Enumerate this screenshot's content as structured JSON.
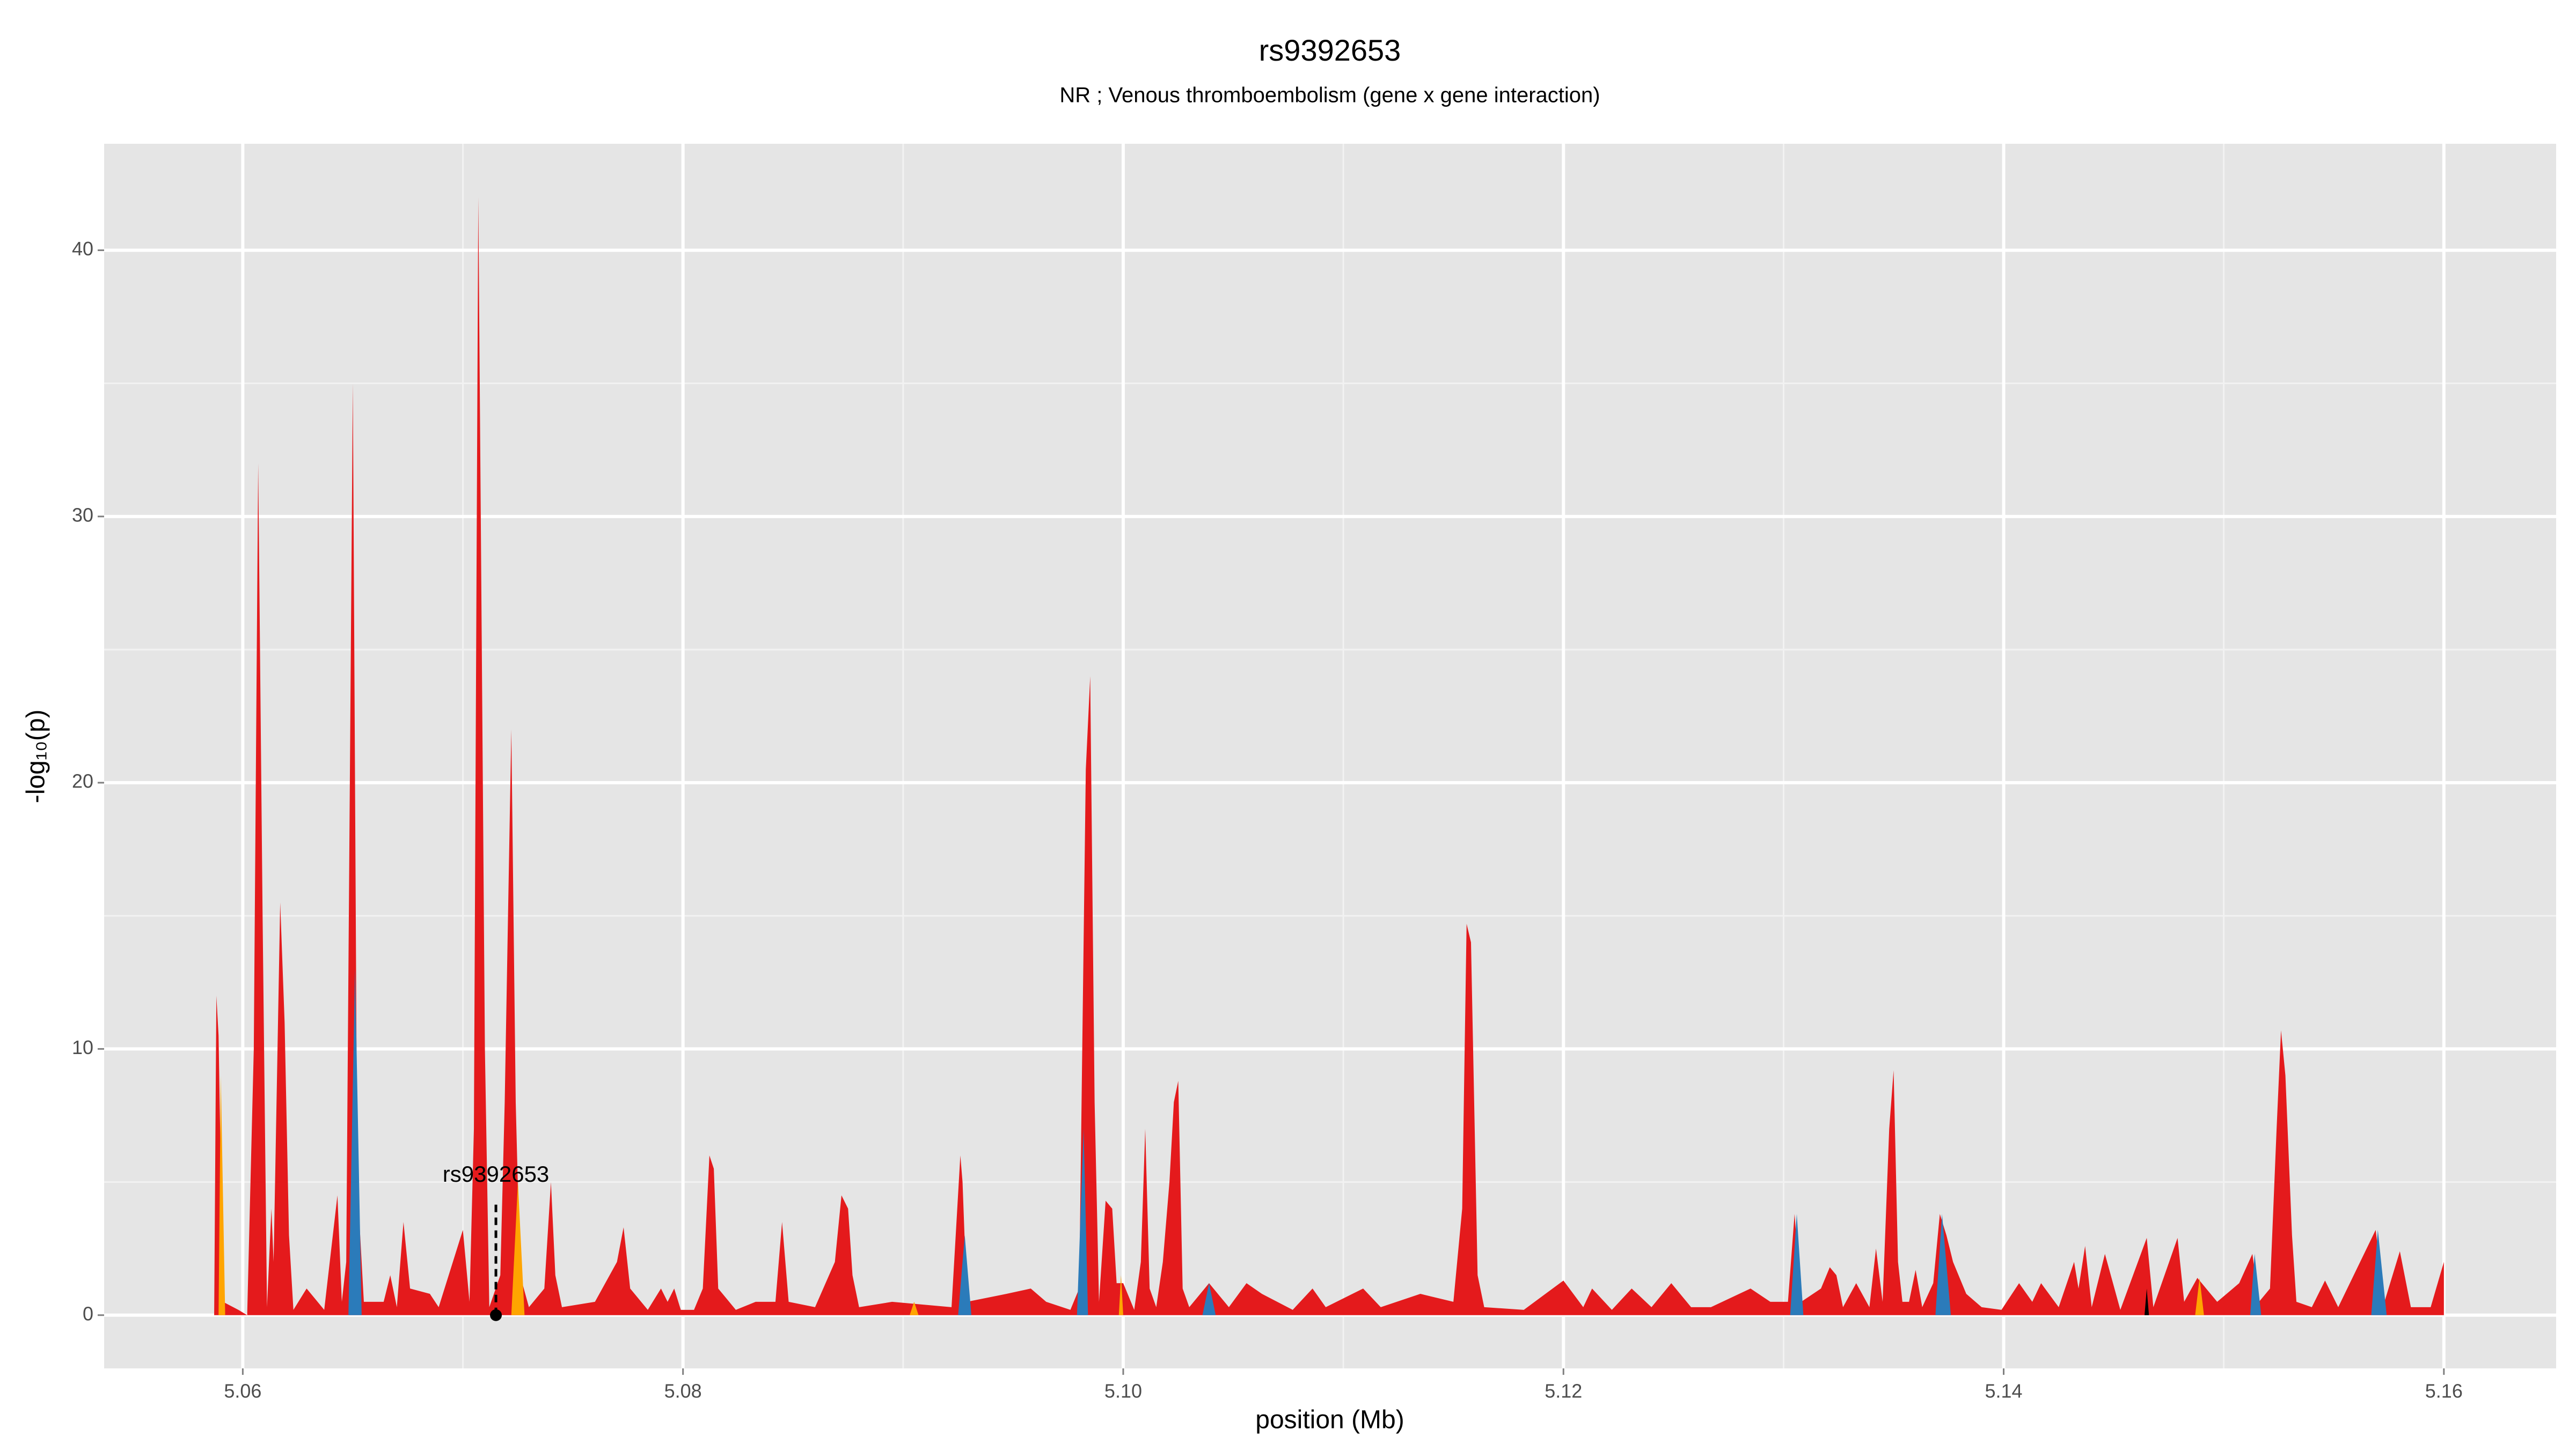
{
  "chart_data": {
    "type": "area",
    "title": "rs9392653",
    "subtitle": "NR ; Venous thromboembolism (gene x gene interaction)",
    "xlabel": "position (Mb)",
    "ylabel": "-log₁₀(p)",
    "xlim": [
      5.0537,
      5.1651
    ],
    "ylim": [
      -2,
      44
    ],
    "xticks": [
      5.06,
      5.08,
      {
        "value": 5.1,
        "label": "5.10"
      },
      5.12,
      5.14,
      5.16
    ],
    "yticks": [
      0,
      10,
      20,
      30,
      40
    ],
    "xminor": [
      5.07,
      5.09,
      5.11,
      5.13,
      5.15
    ],
    "yminor": [
      5,
      15,
      25,
      35
    ],
    "grid": true,
    "annotation": {
      "text": "rs9392653",
      "x": 5.0715,
      "y": 0
    },
    "series": [
      {
        "color": "#e41a1c",
        "x": [
          5.0587,
          5.0588,
          5.0589,
          5.0591,
          5.0598,
          5.0602,
          5.0605,
          5.0607,
          5.0609,
          5.0611,
          5.0613,
          5.0614,
          5.0617,
          5.0619,
          5.0621,
          5.0623,
          5.0629,
          5.0637,
          5.0643,
          5.0645,
          5.0647,
          5.065,
          5.0652,
          5.0655,
          5.0664,
          5.0667,
          5.067,
          5.0673,
          5.0676,
          5.0685,
          5.0689,
          5.07,
          5.0703,
          5.0705,
          5.0707,
          5.071,
          5.0712,
          5.0717,
          5.0719,
          5.0722,
          5.0724,
          5.0726,
          5.073,
          5.0737,
          5.074,
          5.0742,
          5.0745,
          5.076,
          5.077,
          5.0773,
          5.0776,
          5.0784,
          5.079,
          5.0793,
          5.0796,
          5.0799,
          5.0805,
          5.0809,
          5.0812,
          5.0814,
          5.0816,
          5.0824,
          5.0833,
          5.0842,
          5.0845,
          5.0848,
          5.086,
          5.0869,
          5.0872,
          5.0875,
          5.0877,
          5.088,
          5.0895,
          5.0922,
          5.0926,
          5.0927,
          5.0929,
          5.0947,
          5.0958,
          5.0965,
          5.0976,
          5.098,
          5.0983,
          5.0985,
          5.0987,
          5.0989,
          5.0992,
          5.0995,
          5.0997,
          5.1,
          5.1005,
          5.1008,
          5.101,
          5.1012,
          5.1015,
          5.1018,
          5.1021,
          5.1023,
          5.1025,
          5.1027,
          5.103,
          5.1039,
          5.1048,
          5.1056,
          5.1063,
          5.1077,
          5.1086,
          5.1092,
          5.1109,
          5.1117,
          5.1135,
          5.115,
          5.1154,
          5.1156,
          5.1158,
          5.1161,
          5.1164,
          5.1182,
          5.12,
          5.1209,
          5.1213,
          5.1222,
          5.1231,
          5.124,
          5.1249,
          5.1258,
          5.1267,
          5.1285,
          5.1294,
          5.1302,
          5.1305,
          5.1308,
          5.1317,
          5.1321,
          5.1324,
          5.1327,
          5.1333,
          5.1339,
          5.1342,
          5.1345,
          5.1348,
          5.135,
          5.1352,
          5.1354,
          5.1357,
          5.136,
          5.1363,
          5.1368,
          5.1371,
          5.1374,
          5.1377,
          5.1383,
          5.139,
          5.1399,
          5.1407,
          5.1413,
          5.1417,
          5.1425,
          5.1432,
          5.1434,
          5.1437,
          5.144,
          5.1446,
          5.1453,
          5.1465,
          5.1468,
          5.1479,
          5.1482,
          5.1488,
          5.1497,
          5.1507,
          5.1513,
          5.1516,
          5.1521,
          5.1524,
          5.1526,
          5.1528,
          5.1531,
          5.1533,
          5.154,
          5.1546,
          5.1552,
          5.1569,
          5.1573,
          5.158,
          5.1585,
          5.1594,
          5.16
        ],
        "values": [
          0,
          12,
          10.5,
          0.5,
          0.2,
          0,
          10,
          32,
          15,
          0.3,
          4,
          2,
          15.5,
          11,
          3,
          0.2,
          1,
          0.2,
          4.5,
          0.5,
          2,
          35,
          5,
          0.5,
          0.5,
          1.5,
          0.3,
          3.5,
          1,
          0.8,
          0.3,
          3.2,
          0.5,
          7,
          42,
          10,
          0.3,
          1.5,
          8,
          22,
          8,
          1.5,
          0.3,
          1,
          5,
          1.5,
          0.3,
          0.5,
          2,
          3.3,
          1,
          0.2,
          1,
          0.5,
          1,
          0.2,
          0.2,
          1,
          6,
          5.5,
          1,
          0.2,
          0.5,
          0.5,
          3.5,
          0.5,
          0.3,
          2,
          4.5,
          4,
          1.5,
          0.3,
          0.5,
          0.3,
          6,
          5,
          0.5,
          0.8,
          1,
          0.5,
          0.2,
          1,
          20.5,
          24,
          8,
          0.5,
          4.3,
          4,
          1.2,
          1.2,
          0.2,
          2,
          7,
          1,
          0.3,
          2,
          5,
          8,
          8.8,
          1,
          0.3,
          1.2,
          0.3,
          1.2,
          0.8,
          0.2,
          1,
          0.3,
          1,
          0.3,
          0.8,
          0.5,
          4,
          14.7,
          14,
          1.5,
          0.3,
          0.2,
          1.3,
          0.3,
          1,
          0.2,
          1,
          0.3,
          1.2,
          0.3,
          0.3,
          1,
          0.5,
          0.5,
          3.8,
          0.5,
          1,
          1.8,
          1.5,
          0.3,
          1.2,
          0.3,
          2.5,
          0.5,
          7,
          9.2,
          2,
          0.5,
          0.5,
          1.7,
          0.3,
          1.2,
          3.8,
          3,
          2,
          0.8,
          0.3,
          0.2,
          1.2,
          0.5,
          1.2,
          0.3,
          2,
          1,
          2.6,
          0.3,
          2.3,
          0.2,
          2.9,
          0.3,
          2.9,
          0.5,
          1.4,
          0.5,
          1.2,
          2.3,
          0.5,
          1,
          7,
          10.7,
          9,
          3,
          0.5,
          0.3,
          1.3,
          0.3,
          3.2,
          0.5,
          2.4,
          0.3,
          0.3,
          2
        ]
      },
      {
        "color": "#2b7bba",
        "x": [
          5.0648,
          5.0651,
          5.0654,
          5.0925,
          5.0928,
          5.0931,
          5.0979,
          5.0982,
          5.0984,
          5.1036,
          5.1039,
          5.1042,
          5.1303,
          5.1306,
          5.1309,
          5.1369,
          5.1372,
          5.1376,
          5.1512,
          5.1514,
          5.1517,
          5.1567,
          5.157,
          5.1574
        ],
        "values": [
          0,
          13,
          0,
          0,
          3,
          0,
          0,
          7,
          0,
          0,
          1.2,
          0,
          0,
          3.8,
          0,
          0,
          3.8,
          0,
          0,
          2.3,
          0,
          0,
          3.2,
          0
        ]
      },
      {
        "color": "#ffa500",
        "x": [
          5.0589,
          5.059,
          5.0592,
          5.0722,
          5.0725,
          5.0728,
          5.0903,
          5.0905,
          5.0907,
          5.0998,
          5.0999,
          5.1,
          5.1487,
          5.1489,
          5.1491
        ],
        "values": [
          0,
          9,
          0,
          0,
          5,
          0,
          0,
          0.5,
          0,
          0,
          1.5,
          0,
          0,
          1.4,
          0
        ]
      },
      {
        "color": "#000000",
        "x": [
          5.1464,
          5.1465,
          5.1466
        ],
        "values": [
          0,
          1,
          0
        ]
      }
    ]
  }
}
